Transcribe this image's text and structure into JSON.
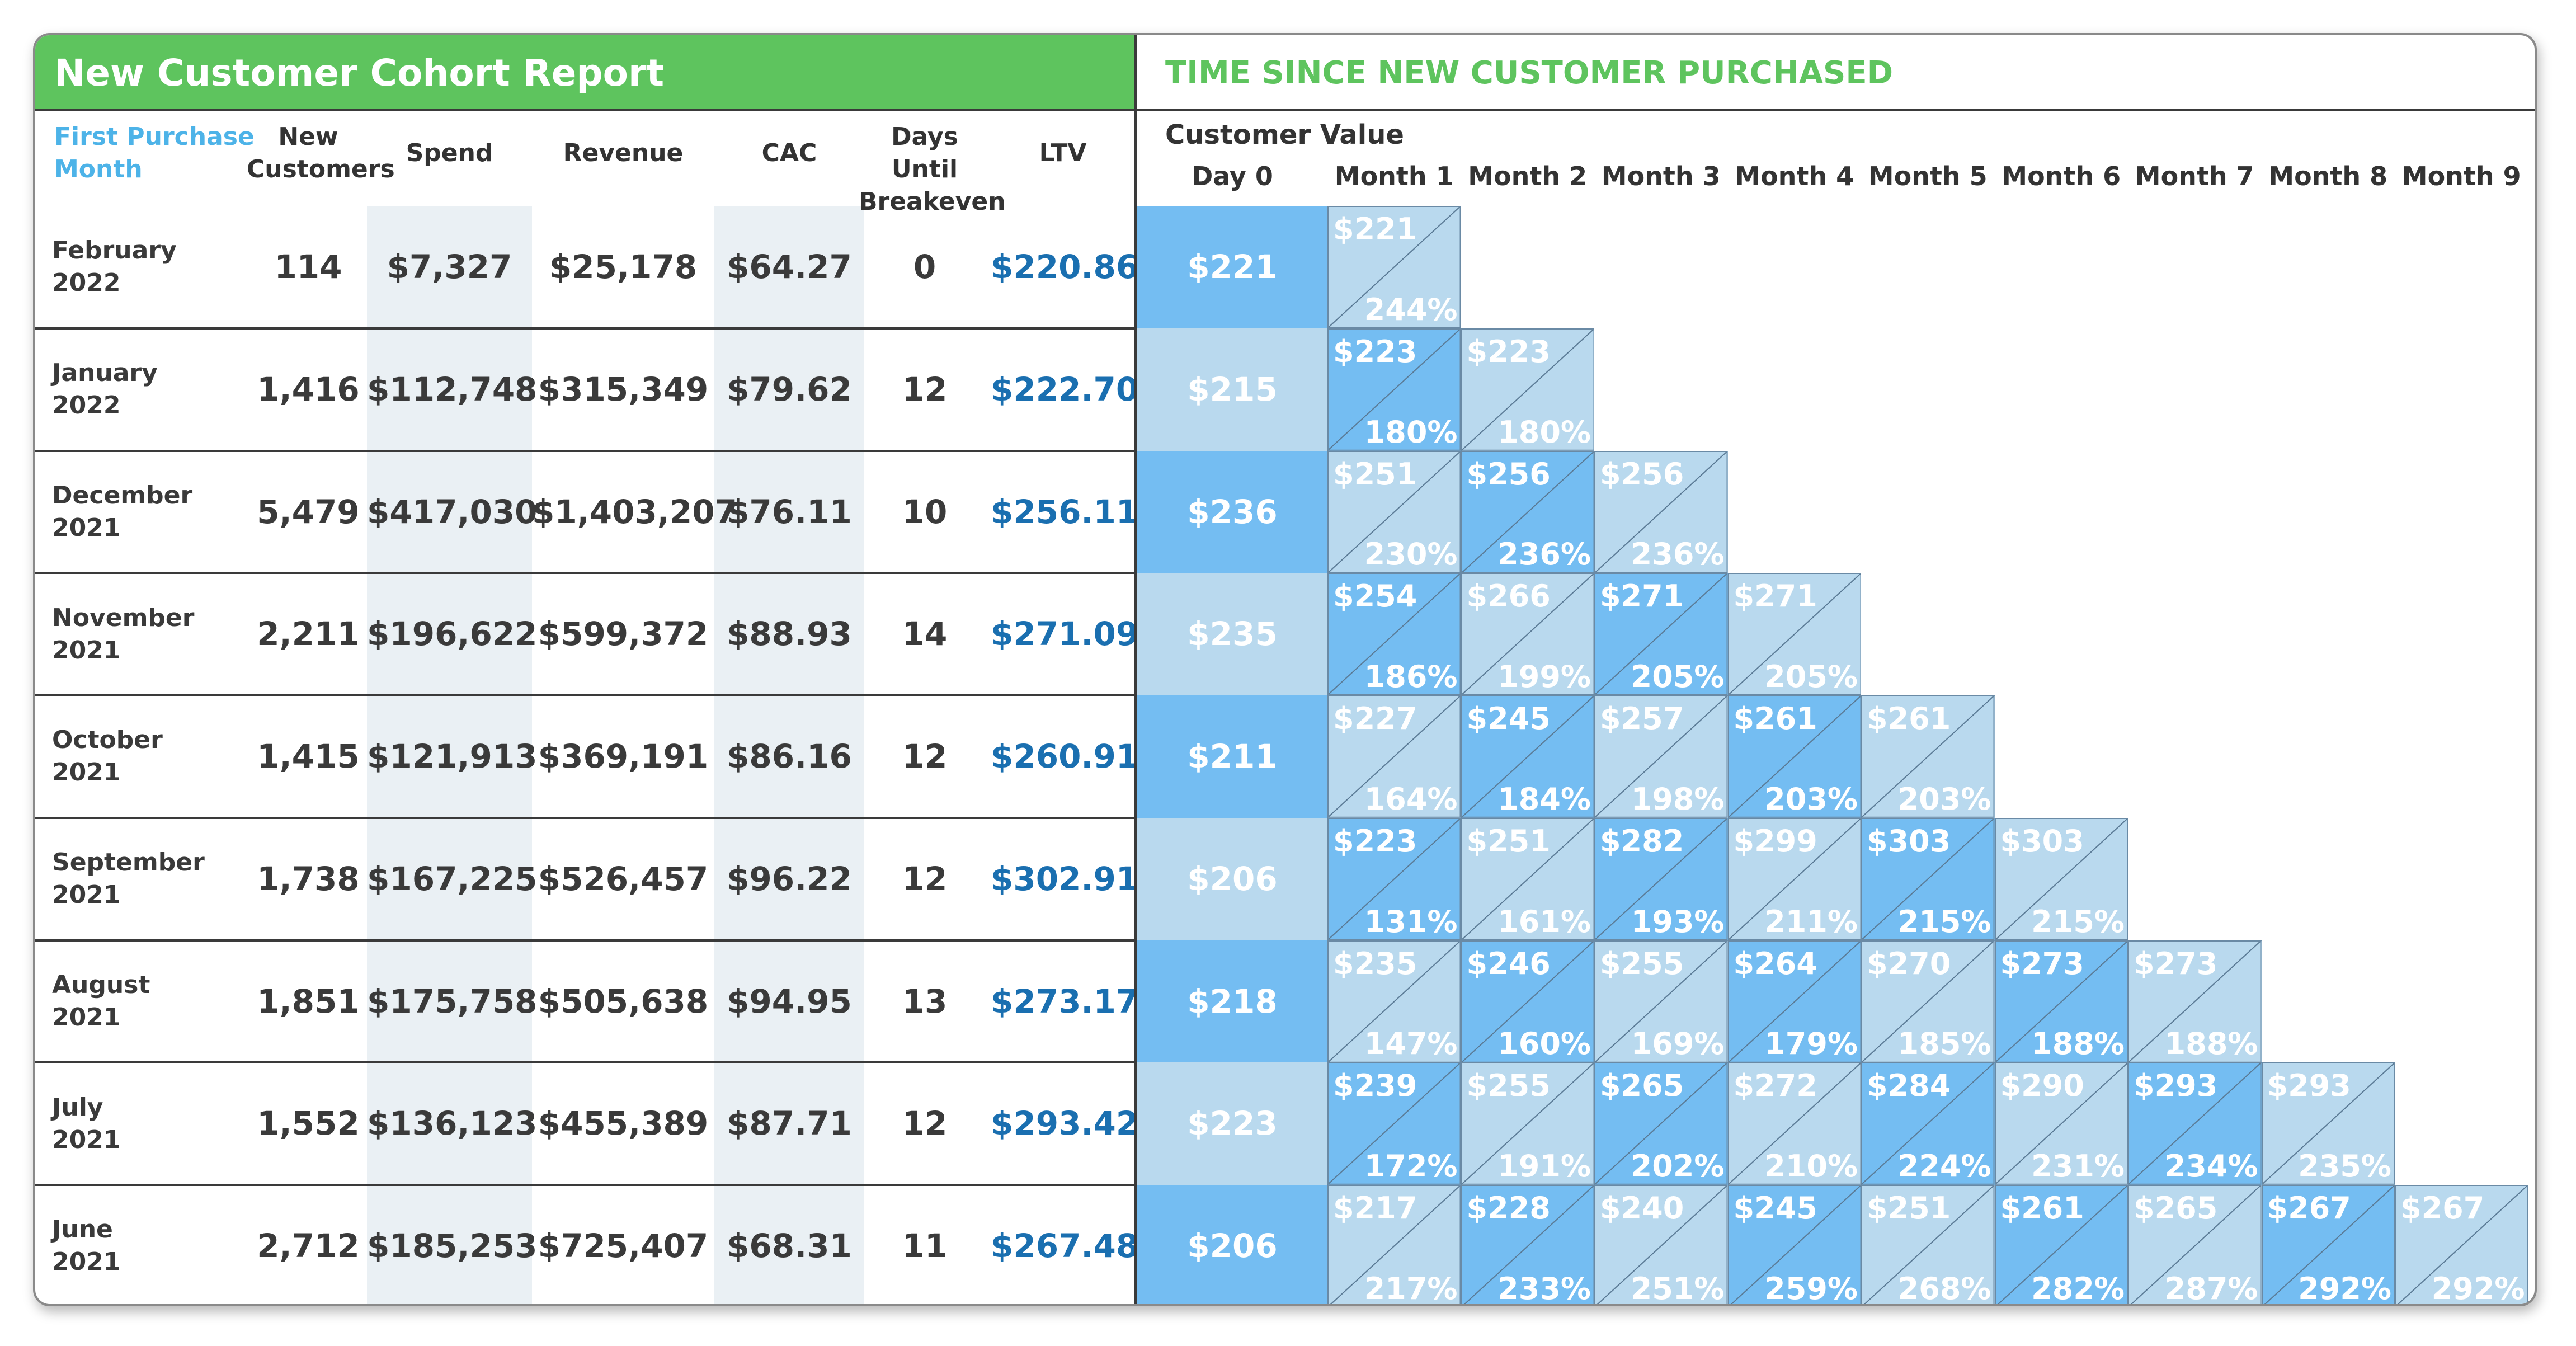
{
  "report": {
    "title": "New Customer Cohort Report",
    "right_title": "TIME SINCE NEW CUSTOMER PURCHASED"
  },
  "columns": {
    "month_line1": "First Purchase",
    "month_line2": "Month",
    "new_line1": "New",
    "new_line2": "Customers",
    "spend": "Spend",
    "revenue": "Revenue",
    "cac": "CAC",
    "days_line1": "Days Until",
    "days_line2": "Breakeven",
    "ltv": "LTV",
    "customer_value": "Customer Value",
    "months": [
      "Day 0",
      "Month 1",
      "Month 2",
      "Month 3",
      "Month 4",
      "Month 5",
      "Month 6",
      "Month 7",
      "Month 8",
      "Month 9"
    ]
  },
  "colors": {
    "green": "#5ec45e",
    "blue_dark": "#74bdf2",
    "blue_light": "#b9d9ee",
    "ltv_text": "#1a6fb0",
    "header_blue": "#4db3e8"
  },
  "rows": [
    {
      "month": "February",
      "year": "2022",
      "new_customers": "114",
      "spend": "$7,327",
      "revenue": "$25,178",
      "cac": "$64.27",
      "days": "0",
      "ltv": "$220.86",
      "day0": "$221",
      "cells": [
        {
          "v": "$221",
          "p": "244%"
        }
      ]
    },
    {
      "month": "January",
      "year": "2022",
      "new_customers": "1,416",
      "spend": "$112,748",
      "revenue": "$315,349",
      "cac": "$79.62",
      "days": "12",
      "ltv": "$222.70",
      "day0": "$215",
      "cells": [
        {
          "v": "$223",
          "p": "180%"
        },
        {
          "v": "$223",
          "p": "180%"
        }
      ]
    },
    {
      "month": "December",
      "year": "2021",
      "new_customers": "5,479",
      "spend": "$417,030",
      "revenue": "$1,403,207",
      "cac": "$76.11",
      "days": "10",
      "ltv": "$256.11",
      "day0": "$236",
      "cells": [
        {
          "v": "$251",
          "p": "230%"
        },
        {
          "v": "$256",
          "p": "236%"
        },
        {
          "v": "$256",
          "p": "236%"
        }
      ]
    },
    {
      "month": "November",
      "year": "2021",
      "new_customers": "2,211",
      "spend": "$196,622",
      "revenue": "$599,372",
      "cac": "$88.93",
      "days": "14",
      "ltv": "$271.09",
      "day0": "$235",
      "cells": [
        {
          "v": "$254",
          "p": "186%"
        },
        {
          "v": "$266",
          "p": "199%"
        },
        {
          "v": "$271",
          "p": "205%"
        },
        {
          "v": "$271",
          "p": "205%"
        }
      ]
    },
    {
      "month": "October",
      "year": "2021",
      "new_customers": "1,415",
      "spend": "$121,913",
      "revenue": "$369,191",
      "cac": "$86.16",
      "days": "12",
      "ltv": "$260.91",
      "day0": "$211",
      "cells": [
        {
          "v": "$227",
          "p": "164%"
        },
        {
          "v": "$245",
          "p": "184%"
        },
        {
          "v": "$257",
          "p": "198%"
        },
        {
          "v": "$261",
          "p": "203%"
        },
        {
          "v": "$261",
          "p": "203%"
        }
      ]
    },
    {
      "month": "September",
      "year": "2021",
      "new_customers": "1,738",
      "spend": "$167,225",
      "revenue": "$526,457",
      "cac": "$96.22",
      "days": "12",
      "ltv": "$302.91",
      "day0": "$206",
      "cells": [
        {
          "v": "$223",
          "p": "131%"
        },
        {
          "v": "$251",
          "p": "161%"
        },
        {
          "v": "$282",
          "p": "193%"
        },
        {
          "v": "$299",
          "p": "211%"
        },
        {
          "v": "$303",
          "p": "215%"
        },
        {
          "v": "$303",
          "p": "215%"
        }
      ]
    },
    {
      "month": "August",
      "year": "2021",
      "new_customers": "1,851",
      "spend": "$175,758",
      "revenue": "$505,638",
      "cac": "$94.95",
      "days": "13",
      "ltv": "$273.17",
      "day0": "$218",
      "cells": [
        {
          "v": "$235",
          "p": "147%"
        },
        {
          "v": "$246",
          "p": "160%"
        },
        {
          "v": "$255",
          "p": "169%"
        },
        {
          "v": "$264",
          "p": "179%"
        },
        {
          "v": "$270",
          "p": "185%"
        },
        {
          "v": "$273",
          "p": "188%"
        },
        {
          "v": "$273",
          "p": "188%"
        }
      ]
    },
    {
      "month": "July",
      "year": "2021",
      "new_customers": "1,552",
      "spend": "$136,123",
      "revenue": "$455,389",
      "cac": "$87.71",
      "days": "12",
      "ltv": "$293.42",
      "day0": "$223",
      "cells": [
        {
          "v": "$239",
          "p": "172%"
        },
        {
          "v": "$255",
          "p": "191%"
        },
        {
          "v": "$265",
          "p": "202%"
        },
        {
          "v": "$272",
          "p": "210%"
        },
        {
          "v": "$284",
          "p": "224%"
        },
        {
          "v": "$290",
          "p": "231%"
        },
        {
          "v": "$293",
          "p": "234%"
        },
        {
          "v": "$293",
          "p": "235%"
        }
      ]
    },
    {
      "month": "June",
      "year": "2021",
      "new_customers": "2,712",
      "spend": "$185,253",
      "revenue": "$725,407",
      "cac": "$68.31",
      "days": "11",
      "ltv": "$267.48",
      "day0": "$206",
      "cells": [
        {
          "v": "$217",
          "p": "217%"
        },
        {
          "v": "$228",
          "p": "233%"
        },
        {
          "v": "$240",
          "p": "251%"
        },
        {
          "v": "$245",
          "p": "259%"
        },
        {
          "v": "$251",
          "p": "268%"
        },
        {
          "v": "$261",
          "p": "282%"
        },
        {
          "v": "$265",
          "p": "287%"
        },
        {
          "v": "$267",
          "p": "292%"
        },
        {
          "v": "$267",
          "p": "292%"
        }
      ]
    }
  ]
}
